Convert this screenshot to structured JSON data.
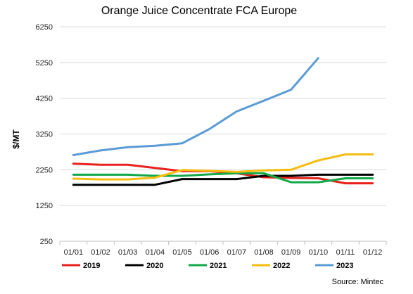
{
  "chart_data": {
    "type": "line",
    "title": "Orange Juice Concentrate FCA Europe",
    "ylabel": "$/MT",
    "xlabel": "",
    "categories": [
      "01/01",
      "01/02",
      "01/03",
      "01/04",
      "01/05",
      "01/06",
      "01/07",
      "01/08",
      "01/09",
      "01/10",
      "01/11",
      "01/12"
    ],
    "y_ticks": [
      250,
      1250,
      2250,
      3250,
      4250,
      5250,
      6250
    ],
    "ylim": [
      250,
      6250
    ],
    "grid": true,
    "legend_position": "bottom",
    "source": "Source: Mintec",
    "series": [
      {
        "name": "2019",
        "color": "#e8211d",
        "values": [
          2420,
          2390,
          2390,
          2300,
          2210,
          2210,
          2150,
          2040,
          2020,
          2010,
          1870,
          1870
        ]
      },
      {
        "name": "2020",
        "color": "#000000",
        "values": [
          1830,
          1830,
          1830,
          1830,
          1990,
          1990,
          1990,
          2080,
          2080,
          2110,
          2110,
          2110
        ]
      },
      {
        "name": "2021",
        "color": "#13a84a",
        "values": [
          2110,
          2110,
          2110,
          2080,
          2080,
          2120,
          2150,
          2150,
          1900,
          1900,
          2010,
          2010
        ]
      },
      {
        "name": "2022",
        "color": "#f5bd0f",
        "values": [
          2000,
          1980,
          1980,
          2030,
          2240,
          2220,
          2190,
          2230,
          2250,
          2510,
          2680,
          2680
        ]
      },
      {
        "name": "2023",
        "color": "#5b9bd5",
        "values": [
          2660,
          2790,
          2880,
          2920,
          2990,
          3390,
          3880,
          4180,
          4490,
          5370,
          null,
          null
        ]
      }
    ]
  }
}
